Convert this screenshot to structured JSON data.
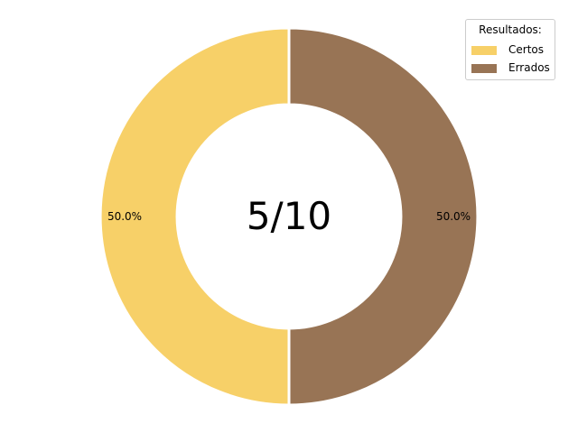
{
  "chart_data": {
    "type": "pie",
    "style": "donut",
    "center_text": "5/10",
    "slices": [
      {
        "label": "Certos",
        "value": 5,
        "pct_label": "50.0%",
        "color": "#F7D068"
      },
      {
        "label": "Errados",
        "value": 5,
        "pct_label": "50.0%",
        "color": "#987455"
      }
    ],
    "legend": {
      "title": "Resultados:",
      "placement": "top-right"
    }
  }
}
